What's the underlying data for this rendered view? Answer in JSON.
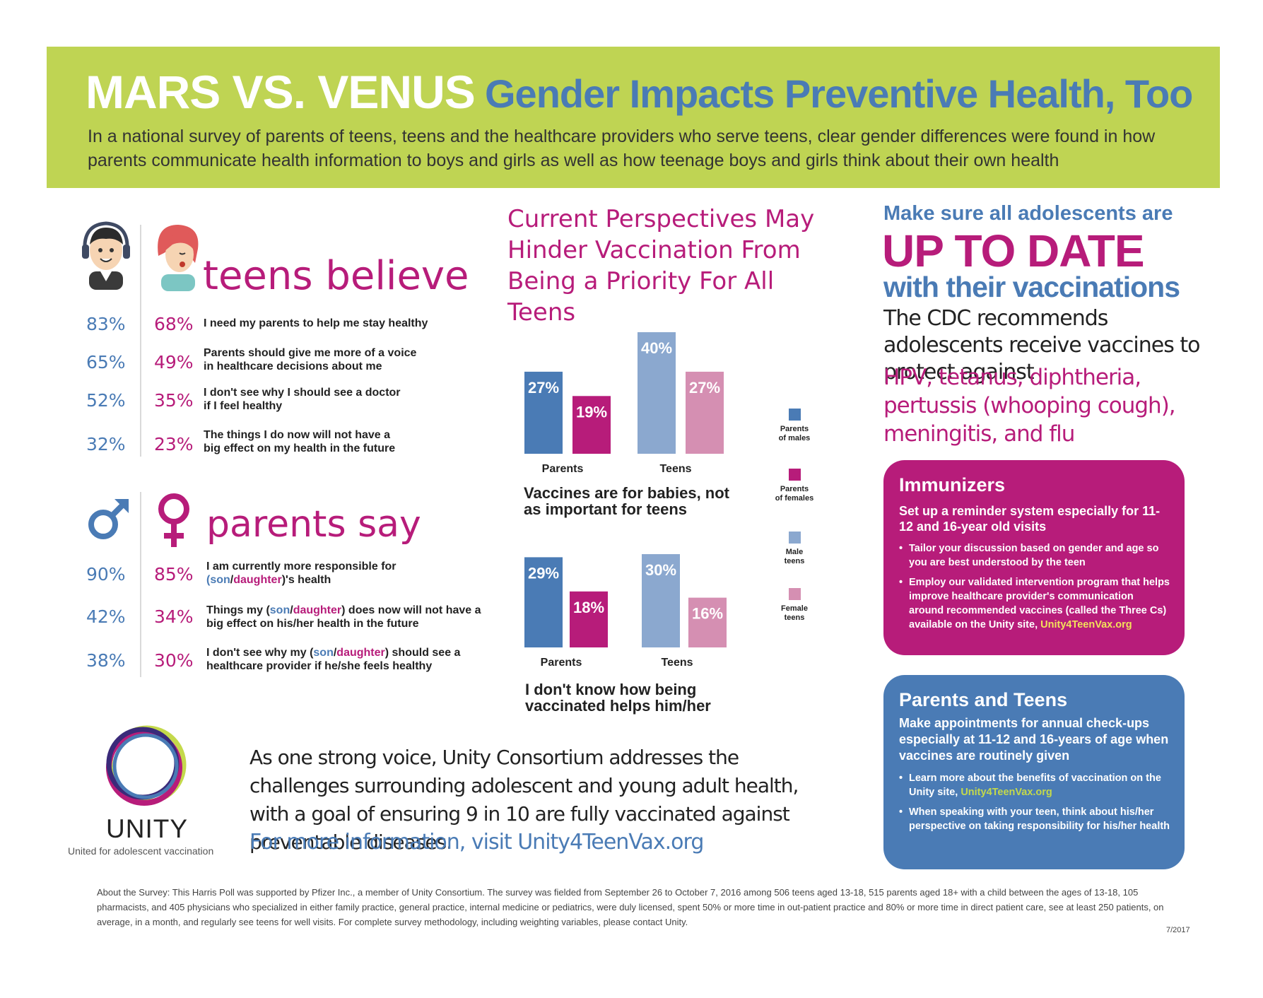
{
  "header": {
    "title_main": "MARS VS. VENUS",
    "title_sub": "Gender Impacts Preventive Health, Too",
    "intro": "In a national survey of parents of teens, teens and the healthcare providers who serve teens, clear gender differences were found in how parents communicate health information to boys and girls as well as how teenage boys and girls think about their own health"
  },
  "teens": {
    "heading": "teens believe",
    "rows": [
      {
        "male": "83%",
        "female": "68%",
        "text": "I need my parents to help me stay healthy"
      },
      {
        "male": "65%",
        "female": "49%",
        "text": "Parents should give me more of a voice in healthcare decisions about me"
      },
      {
        "male": "52%",
        "female": "35%",
        "text": "I don't see why I should see a doctor if I feel healthy"
      },
      {
        "male": "32%",
        "female": "23%",
        "text": "The things I do now will not have a big effect on my health in the future"
      }
    ]
  },
  "parents": {
    "heading": "parents say",
    "rows": [
      {
        "male": "90%",
        "female": "85%",
        "pre": "I am currently more responsible for",
        "pre2": "(",
        "son": "son",
        "slash": "/",
        "daughter": "daughter",
        "post": ")'s health"
      },
      {
        "male": "42%",
        "female": "34%",
        "pre": "Things my (",
        "son": "son",
        "slash": "/",
        "daughter": "daughter",
        "post": ") does now will not have a big effect on his/her health in the future"
      },
      {
        "male": "38%",
        "female": "30%",
        "pre": "I don't see why my (",
        "son": "son",
        "slash": "/",
        "daughter": "daughter",
        "post": ") should see a healthcare provider if he/she feels healthy"
      }
    ]
  },
  "middle": {
    "title": "Current Perspectives May Hinder Vaccination From Being a Priority For All Teens"
  },
  "colors": {
    "parents_males": "#4a7bb5",
    "parents_females": "#b71c7a",
    "male_teens": "#8ba8cf",
    "female_teens": "#d58fb2"
  },
  "chart_data": [
    {
      "type": "bar",
      "title": "Vaccines are for babies, not as important for teens",
      "categories": [
        "Parents",
        "Teens"
      ],
      "series": [
        {
          "name": "Parents of males",
          "category": "Parents",
          "value": 27,
          "label": "27%"
        },
        {
          "name": "Parents of females",
          "category": "Parents",
          "value": 19,
          "label": "19%"
        },
        {
          "name": "Male teens",
          "category": "Teens",
          "value": 40,
          "label": "40%"
        },
        {
          "name": "Female teens",
          "category": "Teens",
          "value": 27,
          "label": "27%"
        }
      ]
    },
    {
      "type": "bar",
      "title": "I don't know how being vaccinated helps him/her",
      "categories": [
        "Parents",
        "Teens"
      ],
      "series": [
        {
          "name": "Parents of males",
          "category": "Parents",
          "value": 29,
          "label": "29%"
        },
        {
          "name": "Parents of females",
          "category": "Parents",
          "value": 18,
          "label": "18%"
        },
        {
          "name": "Male teens",
          "category": "Teens",
          "value": 30,
          "label": "30%"
        },
        {
          "name": "Female teens",
          "category": "Teens",
          "value": 16,
          "label": "16%"
        }
      ]
    }
  ],
  "legend": [
    {
      "line1": "Parents",
      "line2": "of males"
    },
    {
      "line1": "Parents",
      "line2": "of females"
    },
    {
      "line1": "Male",
      "line2": "teens"
    },
    {
      "line1": "Female",
      "line2": "teens"
    }
  ],
  "right": {
    "line1": "Make sure all adolescents are",
    "line2": "UP TO DATE",
    "line3": "with their vaccinations",
    "line4": "The CDC recommends adolescents receive vaccines to protect against",
    "line5": "HPV, tetanus, diphtheria, pertussis (whooping cough), meningitis, and flu"
  },
  "immunizers": {
    "title": "Immunizers",
    "subtitle": "Set up a reminder system especially for 11-12 and 16-year old visits",
    "bullet1": "Tailor your discussion based on gender and age so you are best understood by the teen",
    "bullet2": "Employ our validated intervention program that helps improve healthcare provider's communication around recommended vaccines (called the Three Cs) available on the Unity site, ",
    "bullet2_link": "Unity4TeenVax.org"
  },
  "parents_teens": {
    "title": "Parents and Teens",
    "subtitle": "Make appointments for annual check-ups especially at 11-12 and 16-years of age when vaccines are routinely given",
    "bullet1": "Learn more about the benefits of vaccination on the Unity site, ",
    "bullet1_link": "Unity4TeenVax.org",
    "bullet2": "When speaking with your teen, think about his/her perspective on taking responsibility for his/her health"
  },
  "bottom": {
    "unity_name": "UNITY",
    "unity_tag": "United for adolescent vaccination",
    "mission": "As one strong voice, Unity Consortium addresses the challenges surrounding adolescent and young adult health, with a goal of ensuring 9 in 10 are fully vaccinated against preventable diseases.",
    "more_info": "For more information, visit Unity4TeenVax.org",
    "footnote": "About the Survey: This Harris Poll was supported by Pfizer Inc., a member of Unity Consortium. The survey was fielded from September 26 to October 7, 2016 among 506 teens aged 13-18, 515 parents aged 18+ with a child between the ages of 13-18, 105 pharmacists, and 405 physicians who specialized in either family practice, general practice, internal medicine or pediatrics, were duly licensed, spent 50% or more time in out-patient practice and 80% or more time in direct patient care, see at least 250 patients, on average, in a month, and regularly see teens for well visits. For complete survey methodology, including weighting variables, please contact Unity.",
    "date": "7/2017"
  }
}
